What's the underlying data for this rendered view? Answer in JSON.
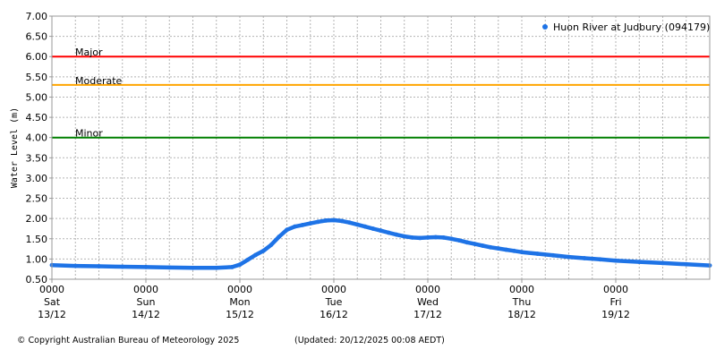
{
  "chart_data": {
    "type": "line",
    "ylabel": "Water Level (m)",
    "ylim": [
      0.5,
      7.0
    ],
    "y_ticks": [
      "7.00",
      "6.50",
      "6.00",
      "5.50",
      "5.00",
      "4.50",
      "4.00",
      "3.50",
      "3.00",
      "2.50",
      "2.00",
      "1.50",
      "1.00",
      "0.50"
    ],
    "xlim_hours": [
      0,
      168
    ],
    "x_ticks": [
      {
        "time": "0000",
        "day": "Sat",
        "date": "13/12"
      },
      {
        "time": "0000",
        "day": "Sun",
        "date": "14/12"
      },
      {
        "time": "0000",
        "day": "Mon",
        "date": "15/12"
      },
      {
        "time": "0000",
        "day": "Tue",
        "date": "16/12"
      },
      {
        "time": "0000",
        "day": "Wed",
        "date": "17/12"
      },
      {
        "time": "0000",
        "day": "Thu",
        "date": "18/12"
      },
      {
        "time": "0000",
        "day": "Fri",
        "date": "19/12"
      }
    ],
    "grid": true,
    "legend_position": "top-right",
    "thresholds": [
      {
        "name": "Major",
        "value": 6.0,
        "color": "#ff0000"
      },
      {
        "name": "Moderate",
        "value": 5.3,
        "color": "#ffa500"
      },
      {
        "name": "Minor",
        "value": 4.0,
        "color": "#008000"
      }
    ],
    "series": [
      {
        "name": "Huon River at Judbury (094179)",
        "color": "#1e73e6",
        "points": [
          [
            0,
            0.85
          ],
          [
            6,
            0.83
          ],
          [
            12,
            0.82
          ],
          [
            18,
            0.81
          ],
          [
            24,
            0.8
          ],
          [
            30,
            0.79
          ],
          [
            36,
            0.78
          ],
          [
            42,
            0.78
          ],
          [
            46,
            0.8
          ],
          [
            48,
            0.86
          ],
          [
            50,
            0.98
          ],
          [
            52,
            1.1
          ],
          [
            54,
            1.2
          ],
          [
            56,
            1.35
          ],
          [
            58,
            1.55
          ],
          [
            60,
            1.72
          ],
          [
            62,
            1.8
          ],
          [
            64,
            1.84
          ],
          [
            66,
            1.88
          ],
          [
            68,
            1.92
          ],
          [
            70,
            1.95
          ],
          [
            72,
            1.96
          ],
          [
            74,
            1.94
          ],
          [
            76,
            1.9
          ],
          [
            78,
            1.85
          ],
          [
            80,
            1.8
          ],
          [
            82,
            1.75
          ],
          [
            84,
            1.7
          ],
          [
            86,
            1.65
          ],
          [
            88,
            1.6
          ],
          [
            90,
            1.56
          ],
          [
            92,
            1.53
          ],
          [
            94,
            1.52
          ],
          [
            96,
            1.53
          ],
          [
            98,
            1.54
          ],
          [
            100,
            1.53
          ],
          [
            102,
            1.5
          ],
          [
            104,
            1.46
          ],
          [
            106,
            1.41
          ],
          [
            108,
            1.37
          ],
          [
            110,
            1.33
          ],
          [
            112,
            1.29
          ],
          [
            114,
            1.26
          ],
          [
            116,
            1.23
          ],
          [
            118,
            1.2
          ],
          [
            120,
            1.17
          ],
          [
            124,
            1.13
          ],
          [
            128,
            1.09
          ],
          [
            132,
            1.05
          ],
          [
            136,
            1.02
          ],
          [
            140,
            0.99
          ],
          [
            144,
            0.96
          ],
          [
            150,
            0.93
          ],
          [
            156,
            0.9
          ],
          [
            162,
            0.87
          ],
          [
            168,
            0.84
          ]
        ]
      }
    ]
  },
  "footer": {
    "copyright": "© Copyright Australian Bureau of Meteorology 2025",
    "updated": "(Updated: 20/12/2025 00:08 AEDT)"
  }
}
